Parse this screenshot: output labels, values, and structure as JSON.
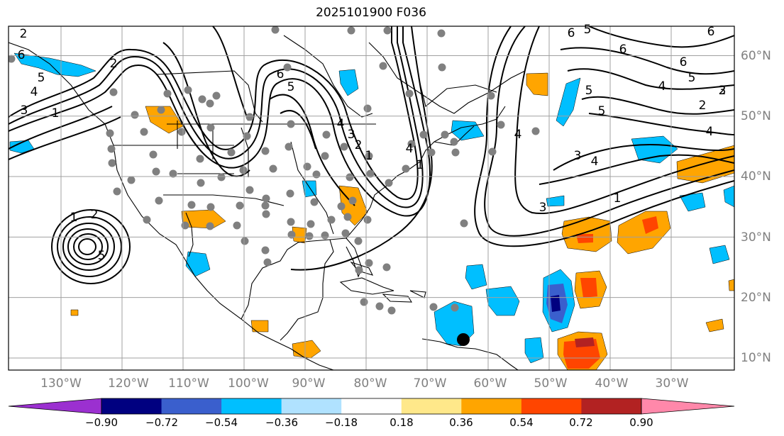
{
  "title": "2025101900 F036",
  "axes": {
    "lon_labels": [
      "130°W",
      "120°W",
      "110°W",
      "100°W",
      "90°W",
      "80°W",
      "70°W",
      "60°W",
      "50°W",
      "40°W",
      "30°W"
    ],
    "lat_labels": [
      "60°N",
      "50°N",
      "40°N",
      "30°N",
      "20°N",
      "10°N"
    ],
    "lon_values": [
      -130,
      -120,
      -110,
      -100,
      -90,
      -80,
      -70,
      -60,
      -50,
      -40,
      -30
    ],
    "lat_values": [
      60,
      50,
      40,
      30,
      20,
      10
    ],
    "lon_range": [
      -140,
      -20
    ],
    "lat_range": [
      8,
      65
    ],
    "grid": true
  },
  "colorbar": {
    "ticks": [
      "−0.90",
      "−0.72",
      "−0.54",
      "−0.36",
      "−0.18",
      "0.18",
      "0.36",
      "0.54",
      "0.72",
      "0.90"
    ],
    "colors": [
      "#9b30d0",
      "#000080",
      "#3a5fcd",
      "#00bfff",
      "#b0e2ff",
      "#ffffff",
      "#ffe88a",
      "#ffa500",
      "#ff4500",
      "#b22222",
      "#ff88aa"
    ],
    "extend": "both"
  },
  "contour_labels": [
    "2",
    "6",
    "5",
    "4",
    "3",
    "1",
    "6",
    "5",
    "4",
    "3",
    "2",
    "1",
    "6",
    "5",
    "4",
    "3",
    "2",
    "1",
    "2",
    "3",
    "4",
    "5",
    "6",
    "4",
    "5",
    "1",
    "2",
    "3",
    "4",
    "5",
    "6",
    "6",
    "5",
    "2",
    "1",
    "4",
    "2",
    "3",
    "4",
    "5",
    "6",
    "3"
  ],
  "markers": {
    "station_color": "#808080",
    "center_dot_color": "#000000"
  }
}
